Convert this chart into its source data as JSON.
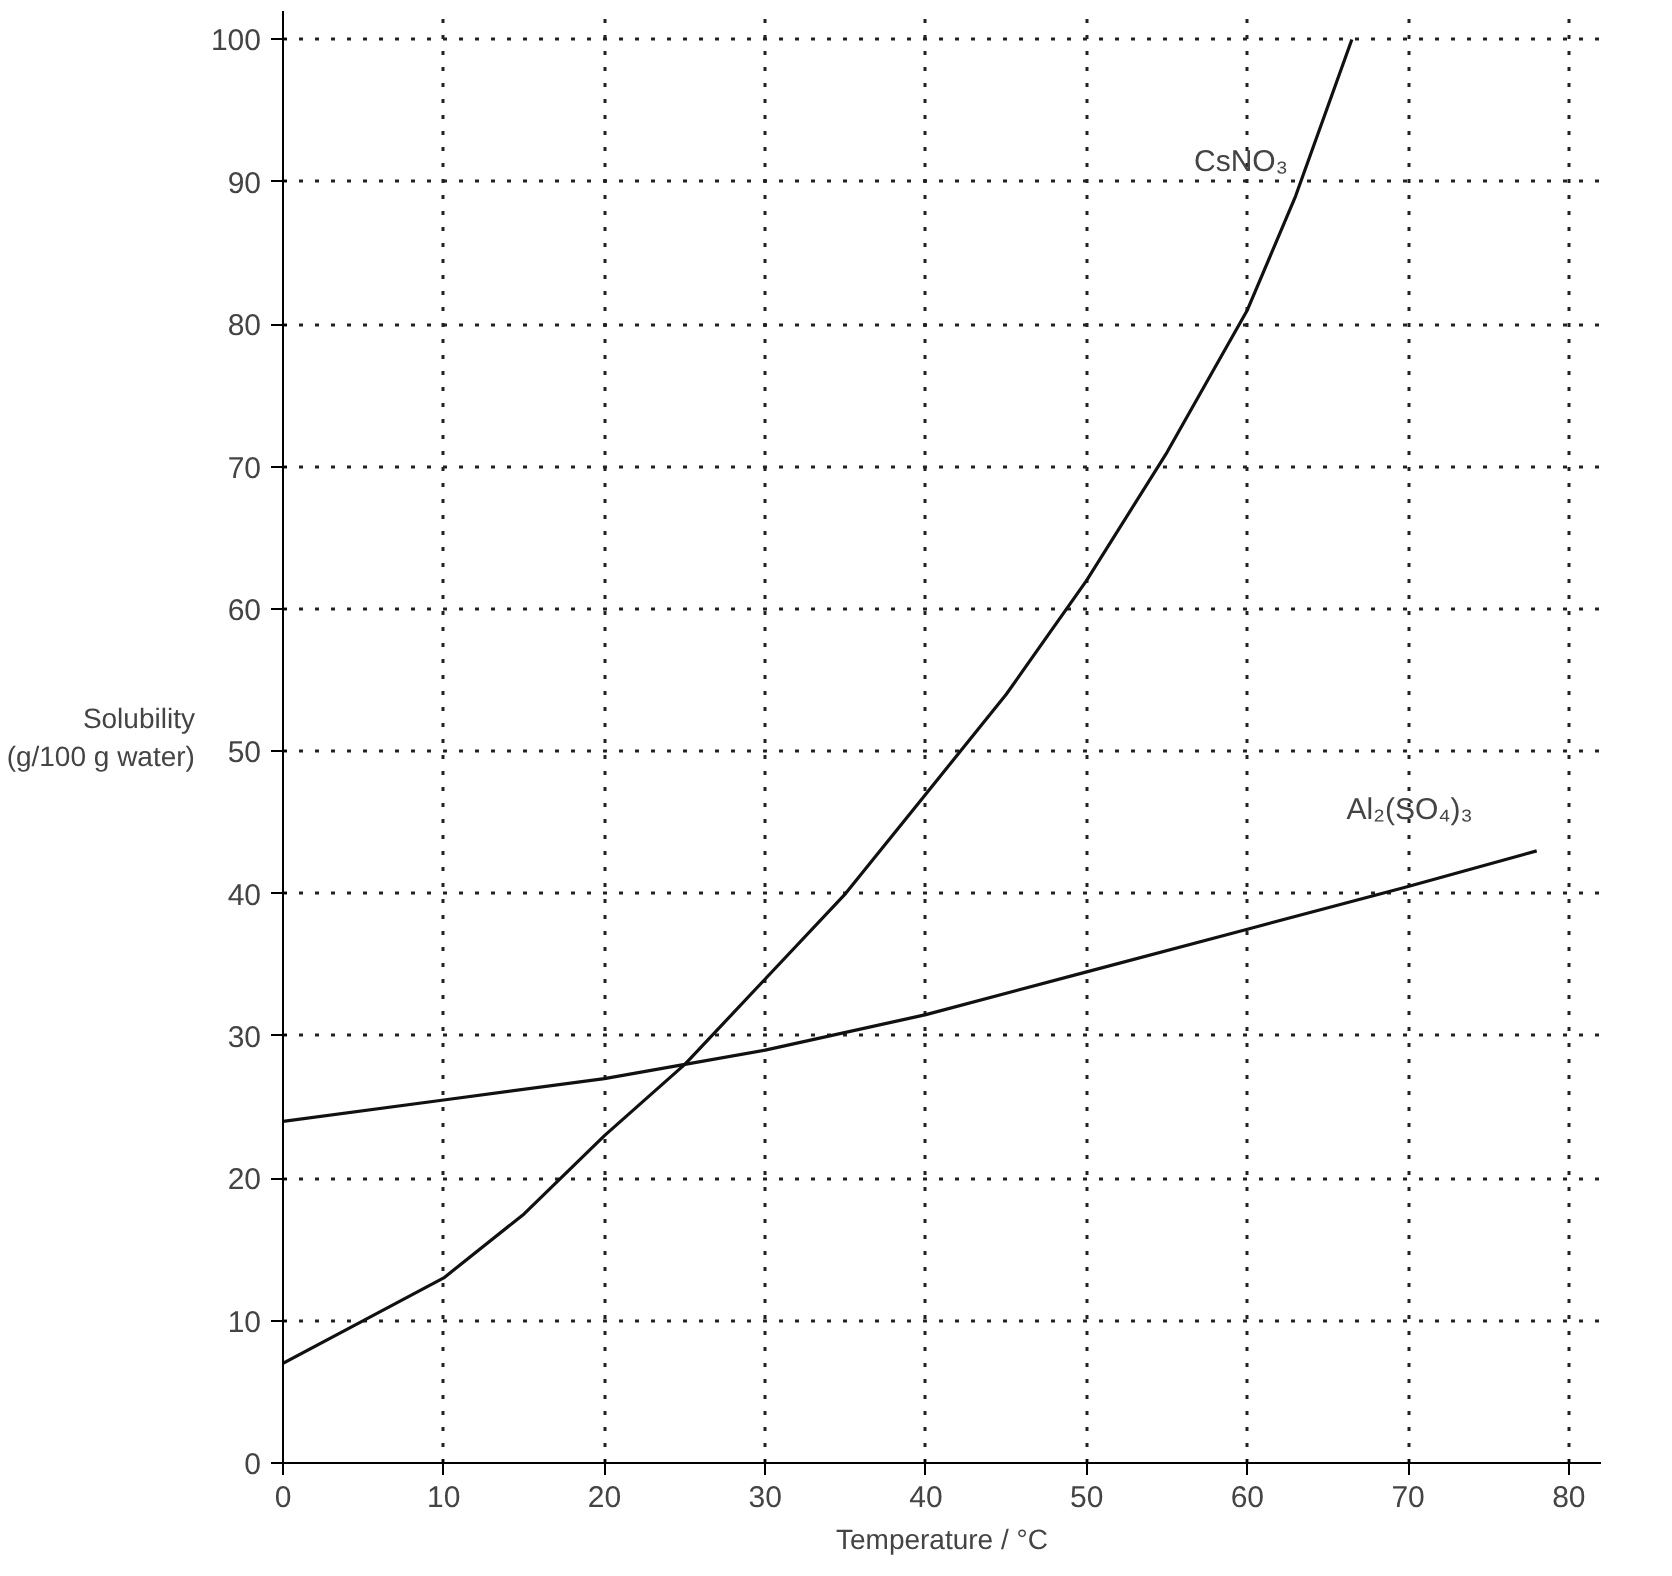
{
  "chart_data": {
    "type": "line",
    "xlabel": "Temperature / °C",
    "ylabel": "Solubility\n(g/100 g water)",
    "series": [
      {
        "name": "CsNO₃",
        "color": "#111111",
        "x": [
          0,
          5,
          10,
          15,
          20,
          25,
          30,
          35,
          40,
          45,
          50,
          55,
          60,
          63,
          66.5
        ],
        "values": [
          7,
          10,
          13,
          17.5,
          23,
          28,
          34,
          40,
          47,
          54,
          62,
          71,
          81,
          89,
          100
        ]
      },
      {
        "name": "Al₂(SO₄)₃",
        "color": "#111111",
        "x": [
          0,
          10,
          20,
          25,
          30,
          40,
          50,
          60,
          70,
          78
        ],
        "values": [
          24,
          25.5,
          27,
          28,
          29,
          31.5,
          34.5,
          37.5,
          40.5,
          43
        ]
      }
    ],
    "xlim": [
      0,
      82
    ],
    "ylim": [
      0,
      102
    ],
    "xticks": [
      0,
      10,
      20,
      30,
      40,
      50,
      60,
      70,
      80
    ],
    "yticks": [
      0,
      10,
      20,
      30,
      40,
      50,
      60,
      70,
      80,
      90,
      100
    ],
    "grid": true,
    "line_style": "solid"
  }
}
